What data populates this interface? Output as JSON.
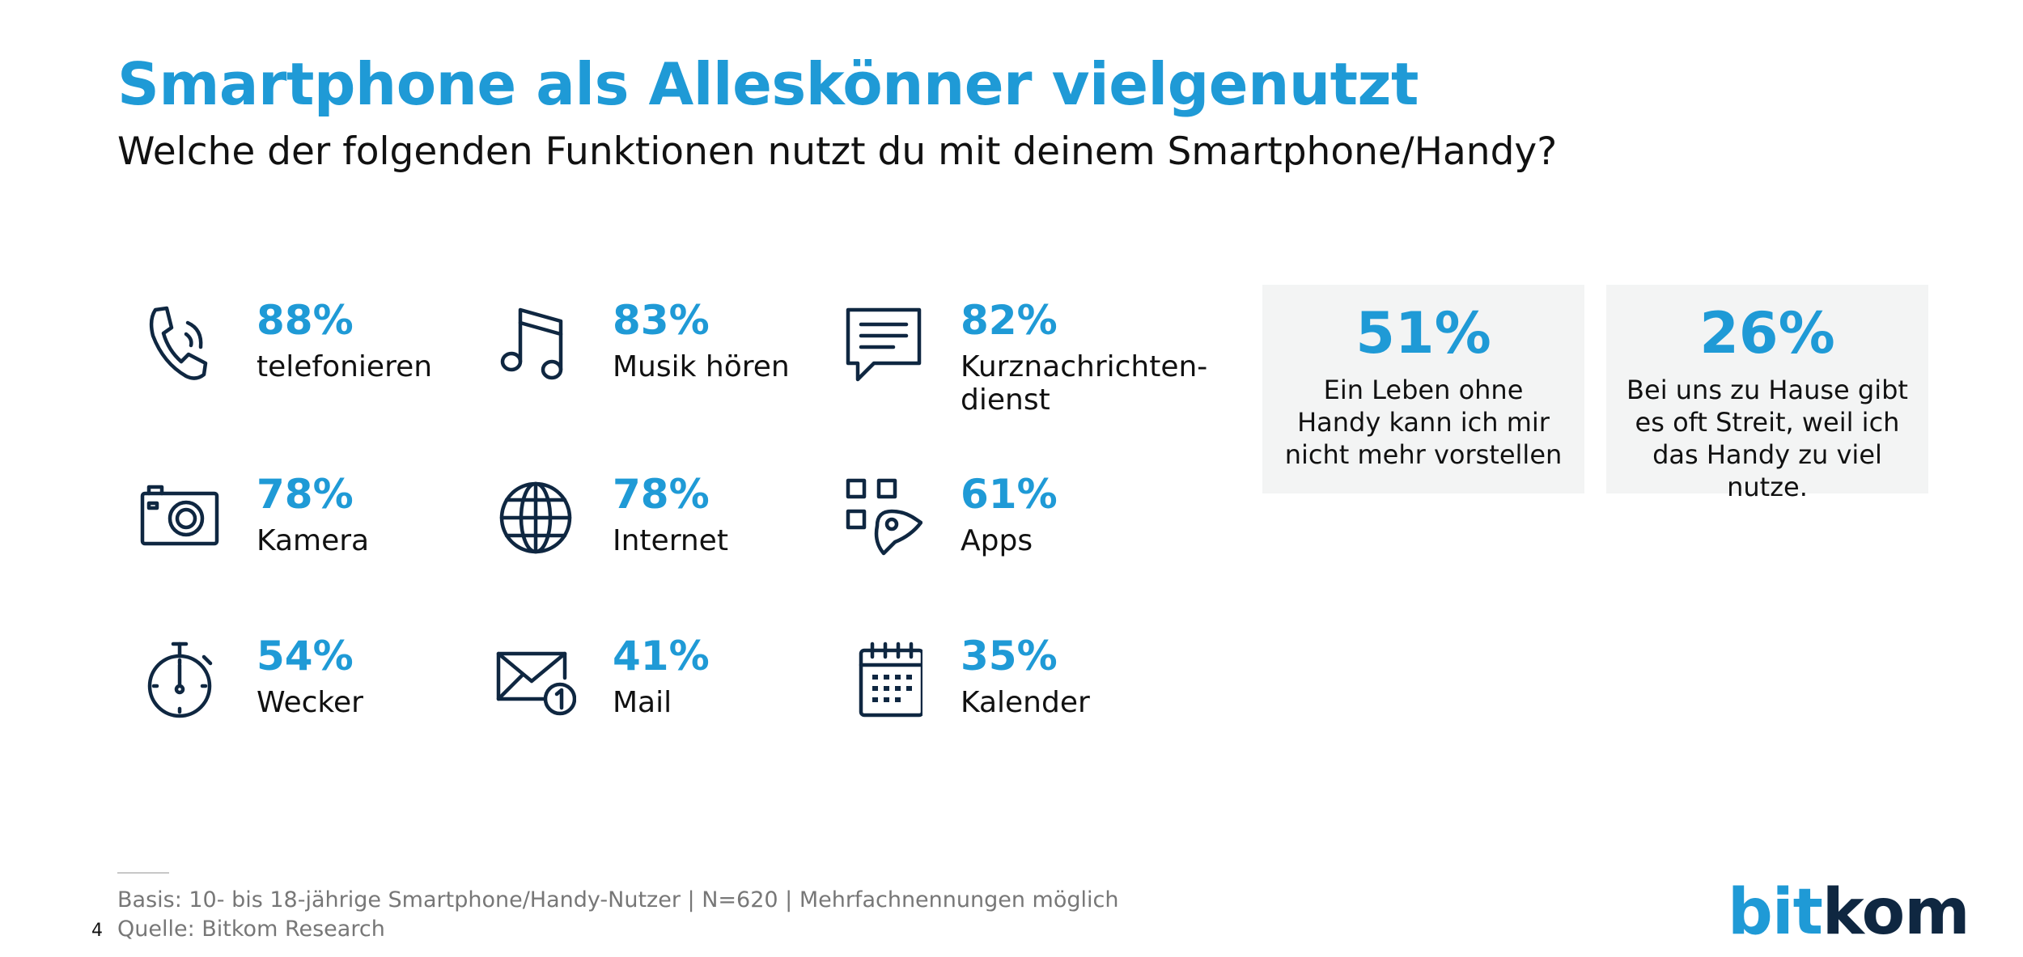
{
  "header": {
    "title": "Smartphone als Alleskönner vielgenutzt",
    "subtitle": "Welche der folgenden Funktionen nutzt du mit deinem Smartphone/Handy?"
  },
  "stats": [
    {
      "value": "88%",
      "label": "telefonieren",
      "icon": "phone-icon"
    },
    {
      "value": "83%",
      "label": "Musik hören",
      "icon": "music-note-icon"
    },
    {
      "value": "82%",
      "label": "Kurznachrichten-dienst",
      "icon": "chat-bubble-icon"
    },
    {
      "value": "78%",
      "label": "Kamera",
      "icon": "camera-icon"
    },
    {
      "value": "78%",
      "label": "Internet",
      "icon": "globe-icon"
    },
    {
      "value": "61%",
      "label": "Apps",
      "icon": "apps-touch-icon"
    },
    {
      "value": "54%",
      "label": "Wecker",
      "icon": "stopwatch-icon"
    },
    {
      "value": "41%",
      "label": "Mail",
      "icon": "mail-icon"
    },
    {
      "value": "35%",
      "label": "Kalender",
      "icon": "calendar-icon"
    }
  ],
  "highlights": [
    {
      "value": "51%",
      "text": "Ein Leben ohne Handy kann ich mir nicht mehr vorstellen"
    },
    {
      "value": "26%",
      "text": "Bei uns zu Hause gibt es oft Streit, weil ich das Handy zu viel nutze."
    }
  ],
  "footer": {
    "basis": "Basis: 10- bis 18-jährige Smartphone/Handy-Nutzer | N=620 | Mehrfachnennungen möglich",
    "source": "Quelle: Bitkom Research",
    "page_number": "4"
  },
  "logo": {
    "part1": "bit",
    "part2": "kom"
  },
  "colors": {
    "accent": "#1f9ad6",
    "icon": "#0f2741",
    "box_bg": "#f3f4f4",
    "footer_text": "#777777"
  }
}
